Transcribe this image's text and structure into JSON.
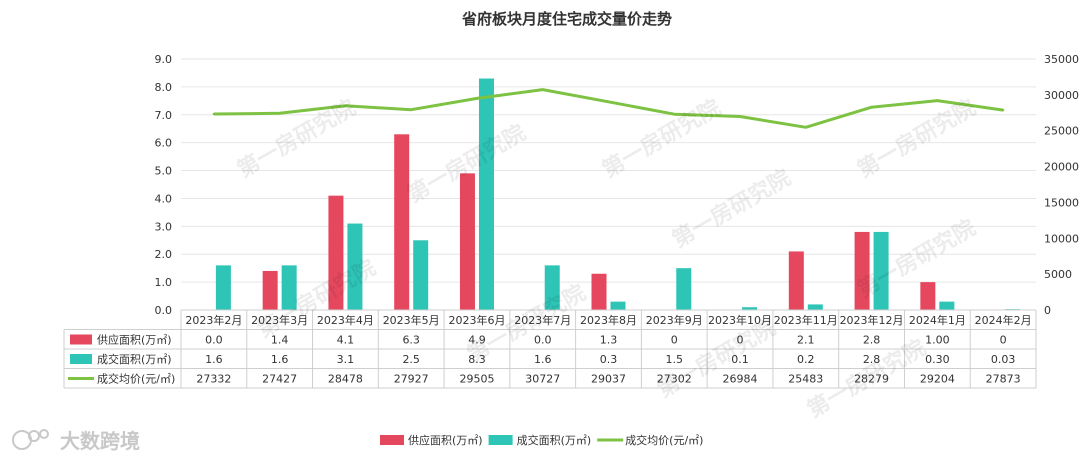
{
  "chart_data": {
    "type": "bar",
    "title": "省府板块月度住宅成交量价走势",
    "categories": [
      "2023年2月",
      "2023年3月",
      "2023年4月",
      "2023年5月",
      "2023年6月",
      "2023年7月",
      "2023年8月",
      "2023年9月",
      "2023年10月",
      "2023年11月",
      "2023年12月",
      "2024年1月",
      "2024年2月"
    ],
    "series": [
      {
        "name": "供应面积(万㎡)",
        "type": "bar",
        "axis": "left",
        "color": "#e5485e",
        "values": [
          0.0,
          1.4,
          4.1,
          6.3,
          4.9,
          0.0,
          1.3,
          0,
          0,
          2.1,
          2.8,
          1.0,
          0
        ],
        "labels": [
          "0.0",
          "1.4",
          "4.1",
          "6.3",
          "4.9",
          "0.0",
          "1.3",
          "0",
          "0",
          "2.1",
          "2.8",
          "1.00",
          "0"
        ]
      },
      {
        "name": "成交面积(万㎡)",
        "type": "bar",
        "axis": "left",
        "color": "#2ec4b6",
        "values": [
          1.6,
          1.6,
          3.1,
          2.5,
          8.3,
          1.6,
          0.3,
          1.5,
          0.1,
          0.2,
          2.8,
          0.3,
          0.03
        ],
        "labels": [
          "1.6",
          "1.6",
          "3.1",
          "2.5",
          "8.3",
          "1.6",
          "0.3",
          "1.5",
          "0.1",
          "0.2",
          "2.8",
          "0.30",
          "0.03"
        ]
      },
      {
        "name": "成交均价(元/㎡)",
        "type": "line",
        "axis": "right",
        "color": "#7dc242",
        "values": [
          27332,
          27427,
          28478,
          27927,
          29505,
          30727,
          29037,
          27302,
          26984,
          25483,
          28279,
          29204,
          27873
        ],
        "labels": [
          "27332",
          "27427",
          "28478",
          "27927",
          "29505",
          "30727",
          "29037",
          "27302",
          "26984",
          "25483",
          "28279",
          "29204",
          "27873"
        ]
      }
    ],
    "y_left": {
      "min": 0,
      "max": 9,
      "ticks": [
        "0.0",
        "1.0",
        "2.0",
        "3.0",
        "4.0",
        "5.0",
        "6.0",
        "7.0",
        "8.0",
        "9.0"
      ]
    },
    "y_right": {
      "min": 0,
      "max": 35000,
      "ticks": [
        "0",
        "5000",
        "10000",
        "15000",
        "20000",
        "25000",
        "30000",
        "35000"
      ]
    },
    "grid": true,
    "legend_position": "bottom-center",
    "data_table": true,
    "watermark": "第一房研究院",
    "logo": "大数跨境"
  }
}
